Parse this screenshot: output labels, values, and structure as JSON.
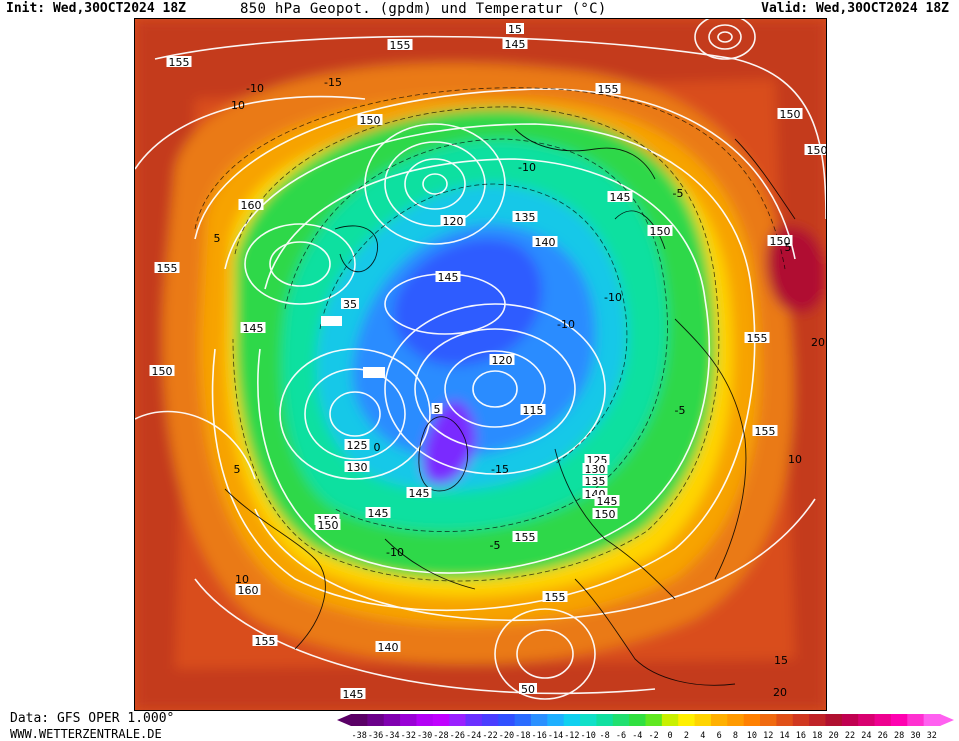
{
  "header": {
    "init": "Init: Wed,30OCT2024 18Z",
    "title": "850 hPa Geopot. (gpdm) und Temperatur (°C)",
    "valid": "Valid: Wed,30OCT2024 18Z"
  },
  "footer": {
    "source": "Data: GFS OPER 1.000°",
    "website": "WWW.WETTERZENTRALE.DE"
  },
  "map": {
    "geopotential_labels": [
      {
        "text": "155"
      },
      {
        "text": "150"
      },
      {
        "text": "145"
      },
      {
        "text": "155"
      },
      {
        "text": "155"
      },
      {
        "text": "150"
      },
      {
        "text": "150"
      },
      {
        "text": "15"
      },
      {
        "text": "160"
      },
      {
        "text": "120"
      },
      {
        "text": "135"
      },
      {
        "text": "145"
      },
      {
        "text": "140"
      },
      {
        "text": "150"
      },
      {
        "text": "150"
      },
      {
        "text": "155"
      },
      {
        "text": "145"
      },
      {
        "text": "35"
      },
      {
        "text": "155"
      },
      {
        "text": "145"
      },
      {
        "text": "120"
      },
      {
        "text": "150"
      },
      {
        "text": "115"
      },
      {
        "text": "125"
      },
      {
        "text": "155"
      },
      {
        "text": "125"
      },
      {
        "text": "130"
      },
      {
        "text": "130"
      },
      {
        "text": "135"
      },
      {
        "text": "140"
      },
      {
        "text": "145"
      },
      {
        "text": "145"
      },
      {
        "text": "150"
      },
      {
        "text": "150"
      },
      {
        "text": "145"
      },
      {
        "text": "150"
      },
      {
        "text": "155"
      },
      {
        "text": "160"
      },
      {
        "text": "155"
      },
      {
        "text": "140"
      },
      {
        "text": "155"
      },
      {
        "text": "145"
      },
      {
        "text": "50"
      },
      {
        "text": "5"
      }
    ],
    "temperature_labels": [
      {
        "text": "-10"
      },
      {
        "text": "-15"
      },
      {
        "text": "10"
      },
      {
        "text": "-10"
      },
      {
        "text": "-5"
      },
      {
        "text": "5"
      },
      {
        "text": "-10"
      },
      {
        "text": "-10"
      },
      {
        "text": "-5"
      },
      {
        "text": "0"
      },
      {
        "text": "5"
      },
      {
        "text": "-15"
      },
      {
        "text": "-10"
      },
      {
        "text": "-5"
      },
      {
        "text": "10"
      },
      {
        "text": "5"
      },
      {
        "text": "20"
      },
      {
        "text": "10"
      },
      {
        "text": "15"
      },
      {
        "text": "20"
      }
    ]
  },
  "colorbar": {
    "ticks": [
      "-38",
      "-36",
      "-34",
      "-32",
      "-30",
      "-28",
      "-26",
      "-24",
      "-22",
      "-20",
      "-18",
      "-16",
      "-14",
      "-12",
      "-10",
      "-8",
      "-6",
      "-4",
      "-2",
      "0",
      "2",
      "4",
      "6",
      "8",
      "10",
      "12",
      "14",
      "16",
      "18",
      "20",
      "22",
      "24",
      "26",
      "28",
      "30",
      "32"
    ],
    "colors": [
      "#5a0066",
      "#6b008a",
      "#8000b0",
      "#9a00d6",
      "#b300f5",
      "#c000ff",
      "#9a20ff",
      "#6a30ff",
      "#4a3dff",
      "#3050ff",
      "#2a6cff",
      "#2a90ff",
      "#1eb0ff",
      "#10d0f0",
      "#10e0c8",
      "#10e0a0",
      "#20e070",
      "#30e040",
      "#60e820",
      "#c8f000",
      "#fff000",
      "#ffd400",
      "#ffb000",
      "#ff9a00",
      "#ff8000",
      "#f06a10",
      "#e05018",
      "#d03820",
      "#c02428",
      "#b01030",
      "#c00050",
      "#d80070",
      "#ee0090",
      "#ff00b0",
      "#ff30d0",
      "#ff60f0"
    ]
  }
}
